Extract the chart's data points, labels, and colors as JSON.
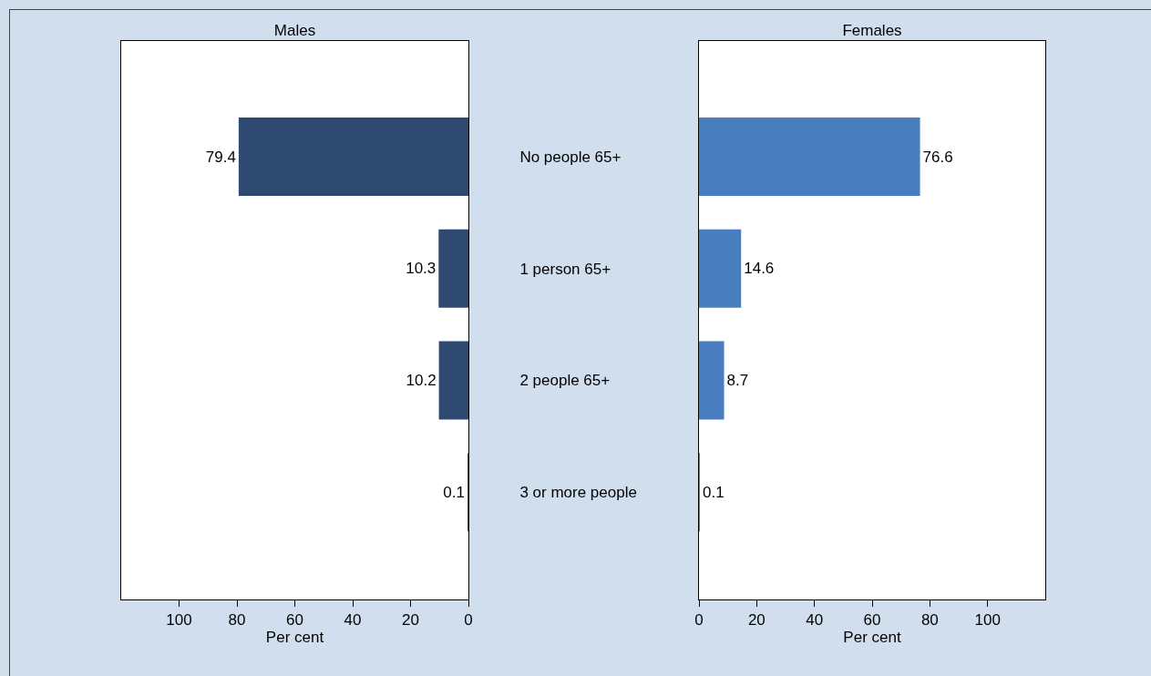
{
  "chart_data": [
    {
      "type": "bar",
      "orientation": "horizontal",
      "title": "Males",
      "xlabel": "Per cent",
      "categories": [
        "No people 65+",
        "1 person 65+",
        "2 people 65+",
        "3 or more people"
      ],
      "series": [
        {
          "color": "#2e4a70",
          "values": [
            79.4,
            10.3,
            10.2,
            0.1
          ]
        }
      ],
      "xlim": [
        120,
        0
      ],
      "xticks": [
        100,
        80,
        60,
        40,
        20,
        0
      ],
      "data_labels": true
    },
    {
      "type": "bar",
      "orientation": "horizontal",
      "title": "Females",
      "xlabel": "Per cent",
      "categories": [
        null,
        null,
        null,
        null
      ],
      "series": [
        {
          "color": "#4a7dbf",
          "values": [
            76.6,
            14.6,
            8.7,
            0.1
          ]
        }
      ],
      "xlim": [
        0,
        120
      ],
      "xticks": [
        0,
        20,
        40,
        60,
        80,
        100
      ],
      "data_labels": true,
      "tick_labels": "x"
    }
  ]
}
